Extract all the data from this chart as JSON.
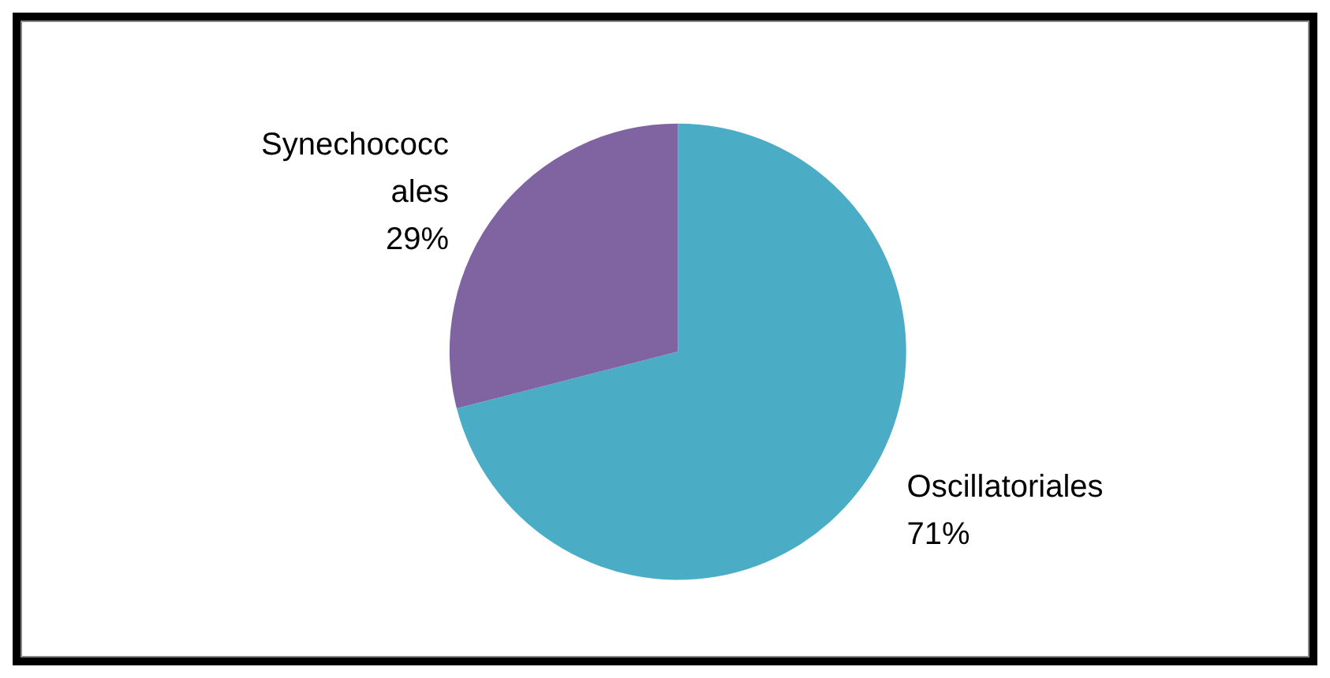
{
  "chart_data": {
    "type": "pie",
    "categories": [
      "Oscillatoriales",
      "Synechococcales"
    ],
    "values": [
      71,
      29
    ],
    "value_labels": [
      "71%",
      "29%"
    ],
    "colors": [
      "#4bacc6",
      "#8064a2"
    ],
    "legend": false
  }
}
